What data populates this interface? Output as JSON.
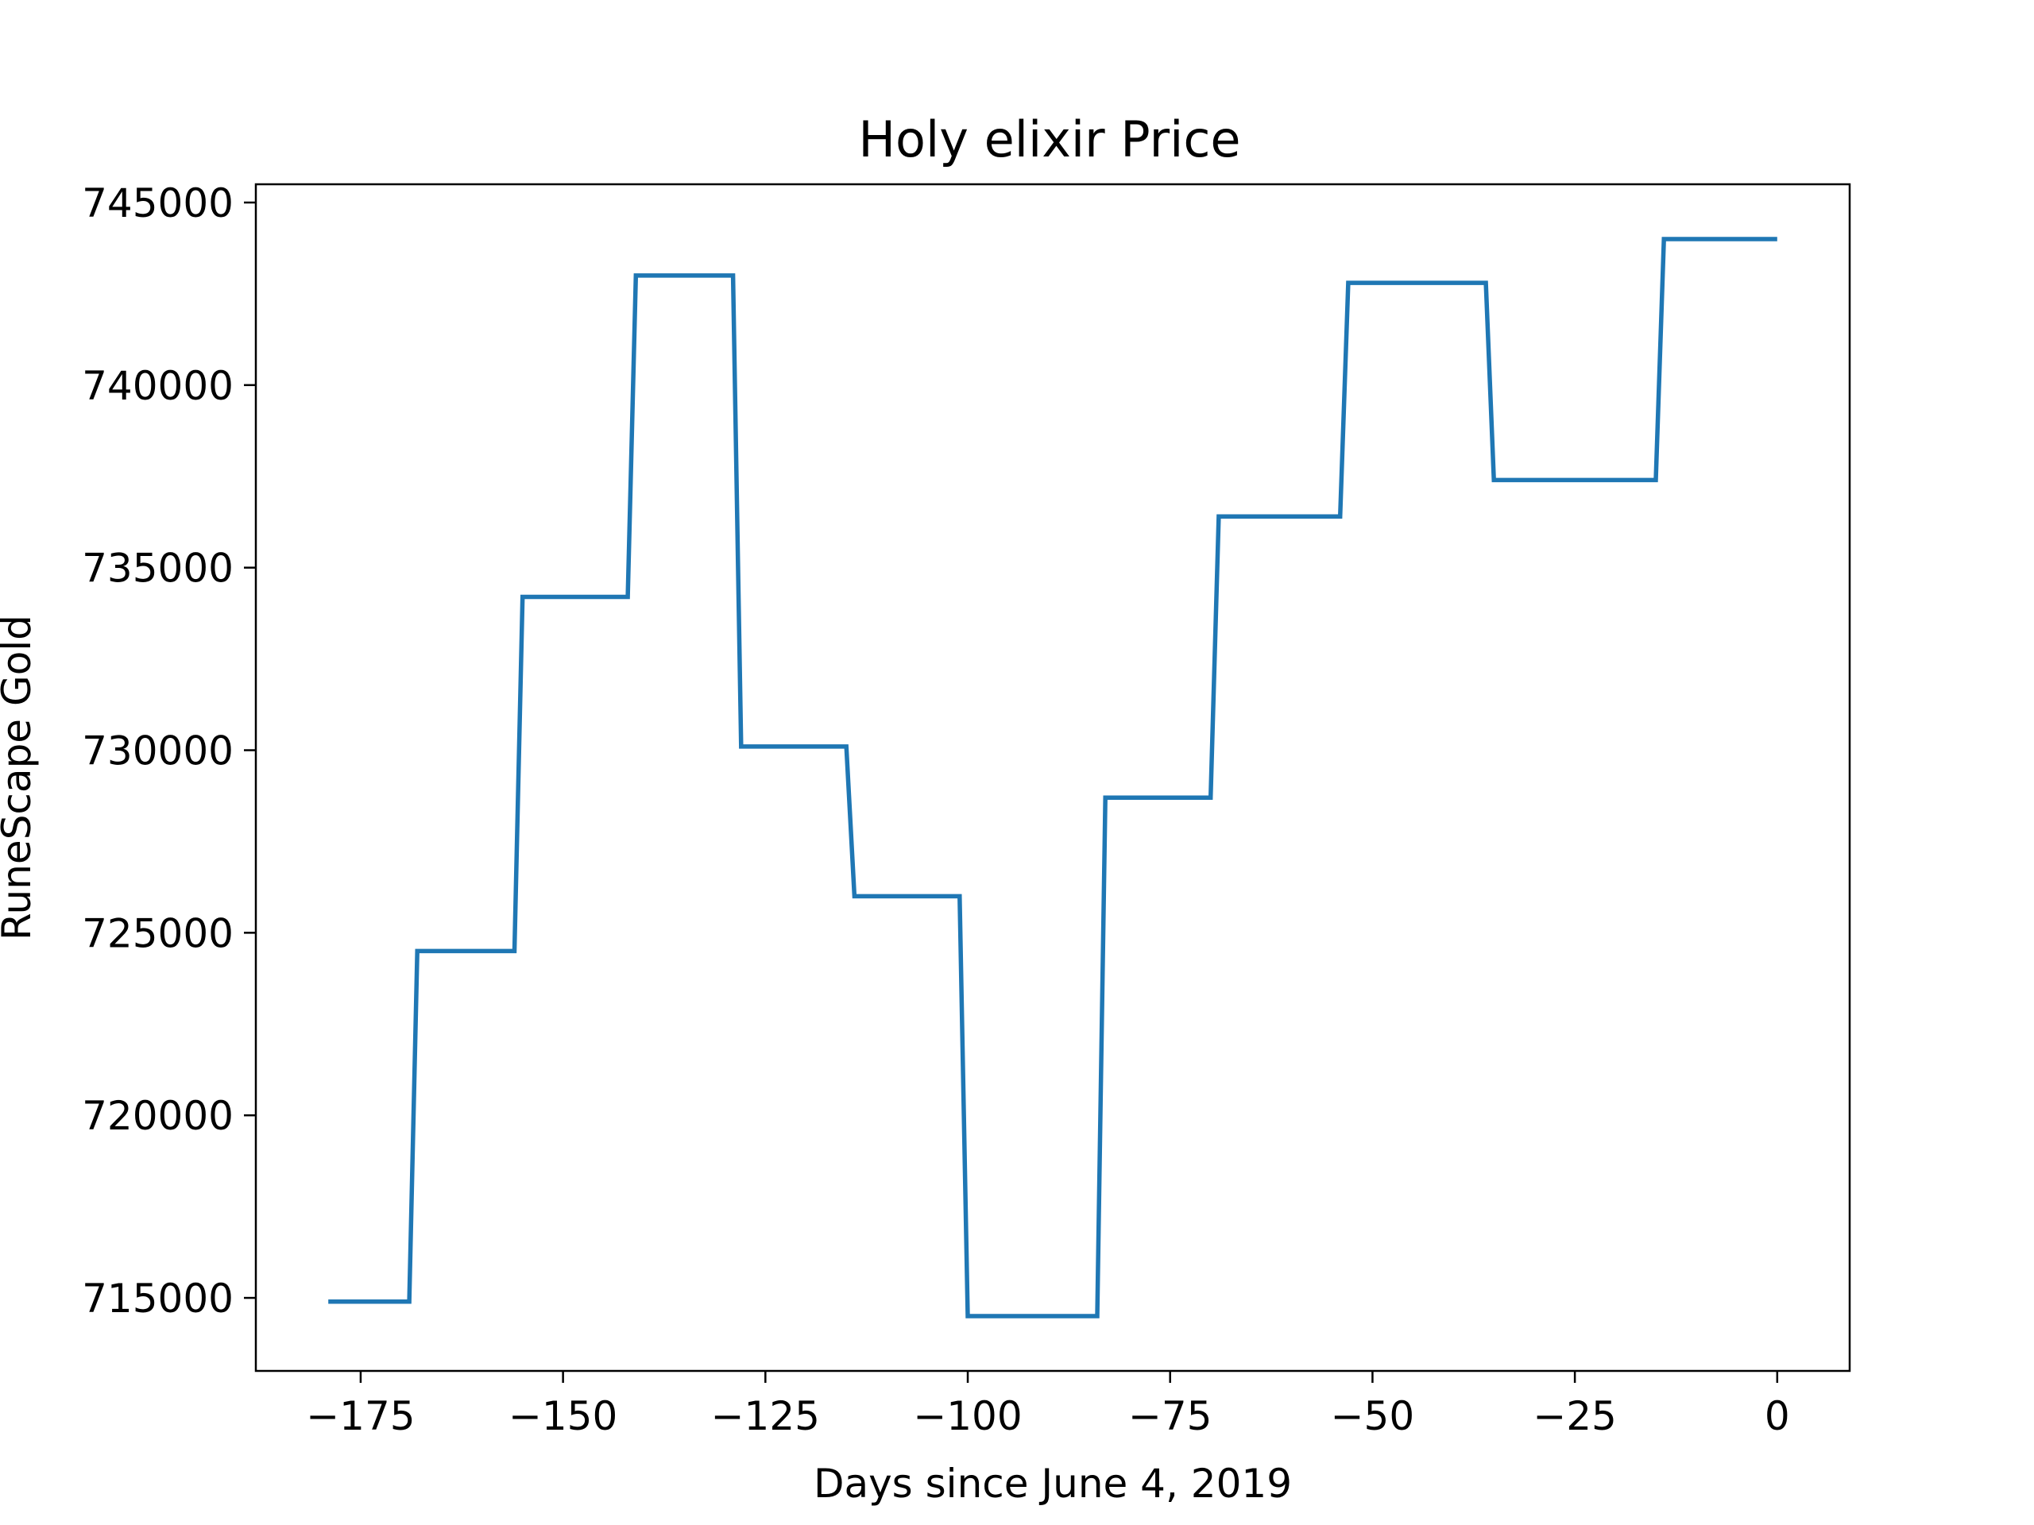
{
  "chart_data": {
    "type": "line",
    "title": "Holy elixir Price",
    "xlabel": "Days since June 4, 2019",
    "ylabel": "RuneScape Gold",
    "xlim": [
      -187.95,
      8.95
    ],
    "ylim": [
      713000,
      745500
    ],
    "xticks": [
      -175,
      -150,
      -125,
      -100,
      -75,
      -50,
      -25,
      0
    ],
    "xtick_labels": [
      "−175",
      "−150",
      "−125",
      "−100",
      "−75",
      "−50",
      "−25",
      "0"
    ],
    "yticks": [
      715000,
      720000,
      725000,
      730000,
      735000,
      740000,
      745000
    ],
    "ytick_labels": [
      "715000",
      "720000",
      "725000",
      "730000",
      "735000",
      "740000",
      "745000"
    ],
    "grid": false,
    "series": [
      {
        "color": "#1f77b4",
        "x": [
          -179,
          -169,
          -168,
          -156,
          -155,
          -142,
          -141,
          -129,
          -128,
          -115,
          -114,
          -101,
          -100,
          -84,
          -83,
          -70,
          -69,
          -54,
          -53,
          -36,
          -35,
          -15,
          -14,
          0
        ],
        "y": [
          714900,
          714900,
          724500,
          724500,
          734200,
          734200,
          743000,
          743000,
          730100,
          730100,
          726000,
          726000,
          714500,
          714500,
          728700,
          728700,
          736400,
          736400,
          742800,
          742800,
          737400,
          737400,
          744000,
          744000
        ]
      }
    ]
  }
}
